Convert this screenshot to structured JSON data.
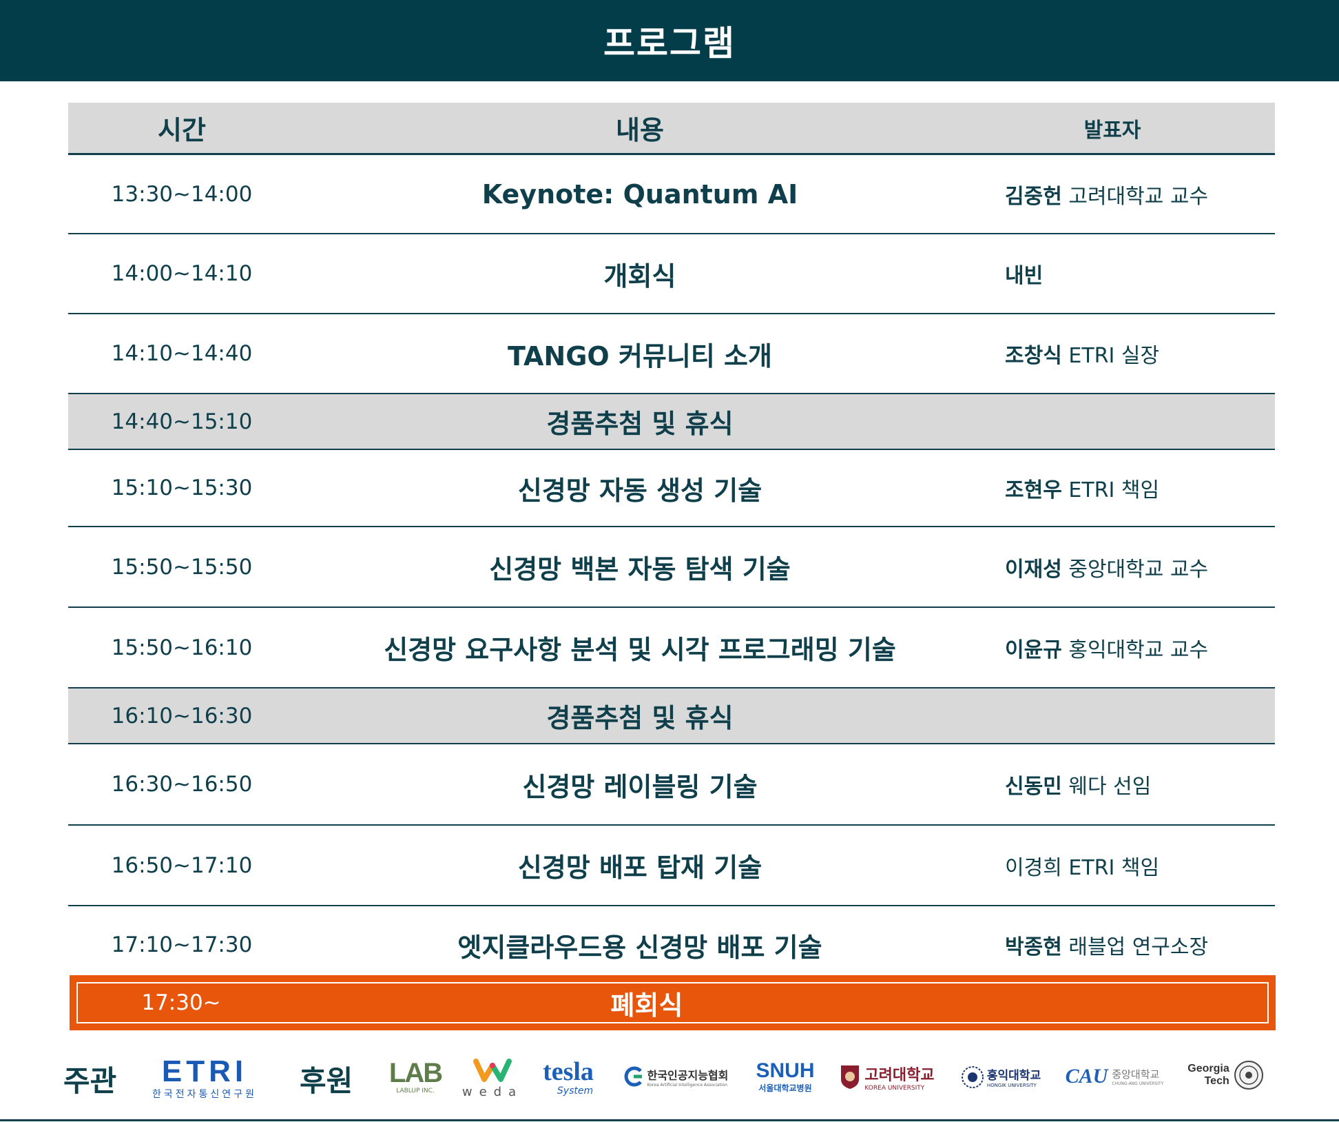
{
  "title": "프로그램",
  "headers": {
    "time": "시간",
    "content": "내용",
    "speaker": "발표자"
  },
  "rows": [
    {
      "time": "13:30~14:00",
      "content": "Keynote: Quantum AI",
      "speaker_name": "김중헌",
      "speaker_org": "고려대학교 교수",
      "gray": false
    },
    {
      "time": "14:00~14:10",
      "content": "개회식",
      "speaker_name": "내빈",
      "speaker_org": "",
      "gray": false
    },
    {
      "time": "14:10~14:40",
      "content": "TANGO 커뮤니티 소개",
      "speaker_name": "조창식",
      "speaker_org": "ETRI 실장",
      "gray": false
    },
    {
      "time": "14:40~15:10",
      "content": "경품추첨 및 휴식",
      "speaker_name": "",
      "speaker_org": "",
      "gray": true
    },
    {
      "time": "15:10~15:30",
      "content": "신경망 자동 생성 기술",
      "speaker_name": "조현우",
      "speaker_org": "ETRI 책임",
      "gray": false
    },
    {
      "time": "15:50~15:50",
      "content": "신경망 백본 자동 탐색 기술",
      "speaker_name": "이재성",
      "speaker_org": "중앙대학교 교수",
      "gray": false
    },
    {
      "time": "15:50~16:10",
      "content": "신경망 요구사항 분석 및 시각 프로그래밍 기술",
      "speaker_name": "이윤규",
      "speaker_org": "홍익대학교 교수",
      "gray": false
    },
    {
      "time": "16:10~16:30",
      "content": "경품추첨 및 휴식",
      "speaker_name": "",
      "speaker_org": "",
      "gray": true
    },
    {
      "time": "16:30~16:50",
      "content": "신경망 레이블링 기술",
      "speaker_name": "신동민",
      "speaker_org": "웨다 선임",
      "gray": false
    },
    {
      "time": "16:50~17:10",
      "content": "신경망 배포 탑재 기술",
      "speaker_name": "이경희",
      "speaker_org": "ETRI 책임",
      "gray": false
    },
    {
      "time": "17:10~17:30",
      "content": "엣지클라우드용 신경망 배포 기술",
      "speaker_name": "박종현",
      "speaker_org": "래블업 연구소장",
      "gray": false
    }
  ],
  "closing": {
    "time": "17:30~",
    "content": "폐회식"
  },
  "footer": {
    "host_label": "주관",
    "sponsor_label": "후원",
    "etri": {
      "main": "ETRI",
      "sub": "한국전자통신연구원"
    },
    "lablup": {
      "main": "LAB",
      "sub": "LABLUP INC."
    },
    "weda": {
      "sub": "weda"
    },
    "tesla": {
      "main": "tesla",
      "sub": "System"
    },
    "kaia": {
      "main": "한국인공지능협회",
      "sub": "Korea Artificial Intelligence Association"
    },
    "snuh": {
      "main": "SNUH",
      "sub": "서울대학교병원"
    },
    "korea": {
      "main": "고려대학교",
      "sub": "KOREA UNIVERSITY"
    },
    "hongik": {
      "main": "홍익대학교",
      "sub": "HONGIK UNIVERSITY"
    },
    "cau": {
      "main": "CAU",
      "name": "중앙대학교",
      "sub": "CHUNG-ANG UNIVERSITY"
    },
    "gatech": {
      "line1": "Georgia",
      "line2": "Tech"
    }
  },
  "colors": {
    "dark_teal": "#033d4a",
    "text": "#0e3f4a",
    "gray": "#d9d9d9",
    "orange": "#e8560c"
  }
}
